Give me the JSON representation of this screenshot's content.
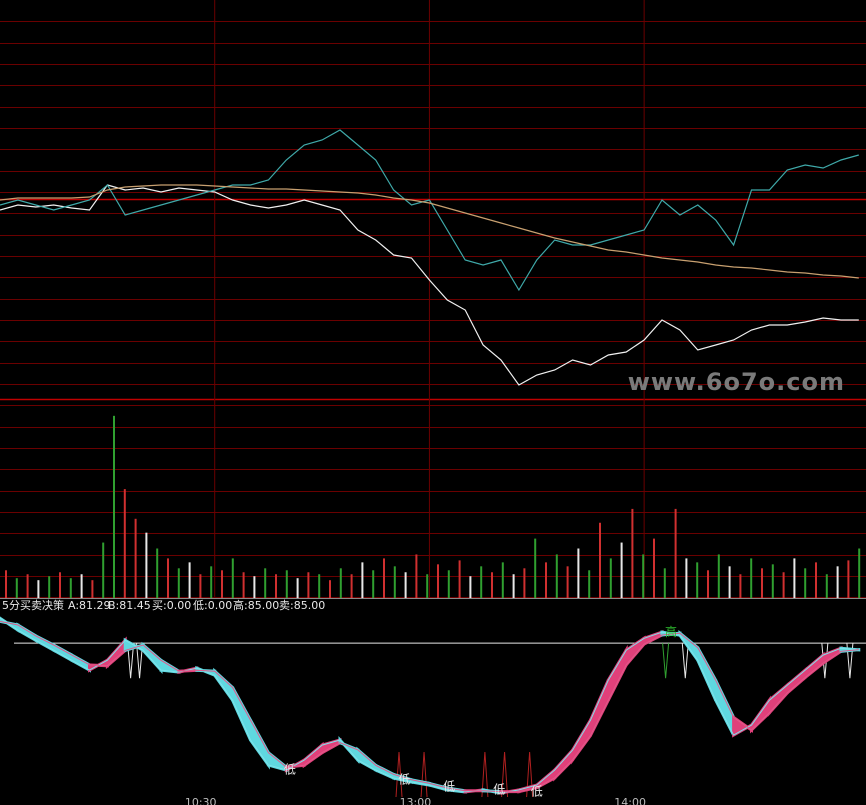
{
  "chart_data": [
    {
      "type": "line",
      "x": [
        0,
        1,
        2,
        3,
        4,
        5,
        6,
        7,
        8,
        9,
        10,
        11,
        12,
        13,
        14,
        15,
        16,
        17,
        18,
        19,
        20,
        21,
        22,
        23,
        24,
        25,
        26,
        27,
        28,
        29,
        30,
        31,
        32,
        33,
        34,
        35,
        36,
        37,
        38,
        39,
        40,
        41,
        42,
        43,
        44,
        45,
        46,
        47,
        48
      ],
      "xlim": [
        0,
        48.4
      ],
      "ylim": [
        0,
        100
      ],
      "grid": true,
      "watermark": "www.6o7o.com",
      "series": [
        {
          "color": "#f0f0f0",
          "values": [
            47.5,
            48.75,
            48.25,
            48.75,
            48,
            47.5,
            53.75,
            52.5,
            53,
            52,
            53,
            52.5,
            52,
            50,
            48.75,
            48,
            48.75,
            50,
            48.75,
            47.5,
            42.5,
            40,
            36.25,
            35.5,
            30,
            25,
            22.5,
            13.75,
            10,
            3.75,
            6.25,
            7.5,
            10,
            8.75,
            11.25,
            12,
            15,
            20,
            17.5,
            12.5,
            13.75,
            15,
            17.5,
            18.75,
            18.75,
            19.5,
            20.5,
            20,
            20
          ]
        },
        {
          "color": "#3fa9a9",
          "values": [
            48.75,
            50,
            48.75,
            47.5,
            48.75,
            50,
            53.75,
            46.25,
            47.5,
            48.75,
            50,
            51.25,
            52.5,
            53.75,
            53.75,
            55,
            60,
            63.75,
            65,
            67.5,
            63.75,
            60,
            52.5,
            48.75,
            50,
            42.5,
            35,
            33.75,
            35,
            27.5,
            35,
            40,
            38.75,
            38.75,
            40,
            41.25,
            42.5,
            50,
            46.25,
            48.75,
            45,
            38.75,
            52.5,
            52.5,
            57.5,
            58.75,
            58,
            60,
            61.25
          ]
        },
        {
          "color": "#c8a070",
          "values": [
            50,
            50.5,
            50.5,
            50.5,
            50.5,
            50.75,
            52.5,
            53.25,
            53.5,
            53.75,
            53.75,
            53.75,
            53.5,
            53.25,
            53,
            52.75,
            52.75,
            52.5,
            52.25,
            52,
            51.75,
            51.25,
            50.5,
            50,
            49.25,
            48,
            46.75,
            45.5,
            44.25,
            43,
            41.75,
            40.5,
            39.5,
            38.5,
            37.5,
            37,
            36.25,
            35.5,
            35,
            34.5,
            33.75,
            33.25,
            33,
            32.5,
            32,
            31.75,
            31.25,
            31,
            30.5
          ]
        }
      ]
    },
    {
      "type": "bar",
      "ylim": [
        0,
        100
      ],
      "values": [
        14,
        10,
        12,
        9,
        11,
        13,
        10,
        12,
        9,
        28,
        92,
        55,
        40,
        33,
        25,
        20,
        15,
        18,
        12,
        16,
        14,
        20,
        13,
        11,
        15,
        12,
        14,
        10,
        13,
        12,
        9,
        15,
        12,
        18,
        14,
        20,
        16,
        13,
        22,
        12,
        17,
        14,
        19,
        11,
        16,
        13,
        18,
        12,
        15,
        30,
        18,
        22,
        16,
        25,
        14,
        38,
        20,
        28,
        45,
        22,
        30,
        15,
        45,
        20,
        18,
        14,
        22,
        16,
        12,
        20,
        15,
        17,
        13,
        20,
        15,
        18,
        12,
        16,
        19,
        25
      ],
      "colors": [
        "#d03030",
        "#30a030",
        "#d03030",
        "#e8e8e8",
        "#30a030",
        "#d03030",
        "#30a030",
        "#e8e8e8",
        "#d03030",
        "#30a030",
        "#30a030",
        "#d03030",
        "#d03030",
        "#e8e8e8",
        "#30a030",
        "#d03030",
        "#30a030",
        "#e8e8e8",
        "#d03030",
        "#30a030",
        "#d03030",
        "#30a030",
        "#d03030",
        "#e8e8e8",
        "#30a030",
        "#d03030",
        "#30a030",
        "#e8e8e8",
        "#d03030",
        "#30a030",
        "#d03030",
        "#30a030",
        "#d03030",
        "#e8e8e8",
        "#30a030",
        "#d03030",
        "#30a030",
        "#e8e8e8",
        "#d03030",
        "#30a030",
        "#d03030",
        "#30a030",
        "#d03030",
        "#e8e8e8",
        "#30a030",
        "#d03030",
        "#30a030",
        "#e8e8e8",
        "#d03030",
        "#30a030",
        "#d03030",
        "#30a030",
        "#d03030",
        "#e8e8e8",
        "#30a030",
        "#d03030",
        "#30a030",
        "#e8e8e8",
        "#d03030",
        "#30a030",
        "#d03030",
        "#30a030",
        "#d03030",
        "#e8e8e8",
        "#30a030",
        "#d03030",
        "#30a030",
        "#e8e8e8",
        "#d03030",
        "#30a030",
        "#d03030",
        "#30a030",
        "#d03030",
        "#e8e8e8",
        "#30a030",
        "#d03030",
        "#30a030",
        "#e8e8e8",
        "#d03030",
        "#30a030"
      ]
    },
    {
      "type": "ribbon",
      "title": "5分买卖决策",
      "readouts": [
        "A:81.29",
        "B:81.45",
        "买:0.00",
        "低:0.00",
        "高:85.00",
        "卖:85.00"
      ],
      "x": [
        0,
        1,
        2,
        3,
        4,
        5,
        6,
        7,
        8,
        9,
        10,
        11,
        12,
        13,
        14,
        15,
        16,
        17,
        18,
        19,
        20,
        21,
        22,
        23,
        24,
        25,
        26,
        27,
        28,
        29,
        30,
        31,
        32,
        33,
        34,
        35,
        36,
        37,
        38,
        39,
        40,
        41,
        42,
        43,
        44,
        45,
        46,
        47,
        48
      ],
      "xlim": [
        0,
        48.4
      ],
      "ylim": [
        0,
        100
      ],
      "ref_line": 85,
      "xticks": [
        {
          "value": 12,
          "label": "10:30"
        },
        {
          "value": 24,
          "label": "13:00"
        },
        {
          "value": 36,
          "label": "14:00"
        }
      ],
      "rise_color": "#e0407a",
      "fall_color": "#5fd8e0",
      "series": [
        {
          "color": "#7fe3ea",
          "values": [
            98.8,
            92.2,
            86.6,
            81.1,
            75.6,
            70.1,
            75.6,
            86.6,
            81.1,
            70.1,
            69.0,
            71.2,
            67.3,
            53.5,
            31.5,
            17.7,
            14.9,
            20.4,
            28.7,
            31.5,
            20.4,
            14.9,
            10.5,
            8.3,
            6.6,
            3.9,
            2.8,
            3.9,
            2.2,
            3.9,
            6.6,
            14.9,
            25.9,
            42.5,
            64.6,
            81.1,
            87.7,
            91.1,
            89.4,
            75.6,
            53.5,
            34.2,
            39.7,
            53.5,
            61.8,
            70.1,
            78.4,
            82.2,
            81.29
          ]
        },
        {
          "color": "#e05a8a",
          "values": [
            97.0,
            95.0,
            89.0,
            84.0,
            78.5,
            73.0,
            72.5,
            81.0,
            84.0,
            75.5,
            69.5,
            70.0,
            69.5,
            60.5,
            42.5,
            24.5,
            16.5,
            17.5,
            24.5,
            30.0,
            26.0,
            17.5,
            12.5,
            9.5,
            7.5,
            5.0,
            3.4,
            3.4,
            3.0,
            3.0,
            5.2,
            10.5,
            20.5,
            34.0,
            53.5,
            73.0,
            84.5,
            89.5,
            90.5,
            82.5,
            64.5,
            44.0,
            37.0,
            46.5,
            57.5,
            66.0,
            74.0,
            80.5,
            81.45
          ]
        }
      ],
      "buy_signals": [
        22.3,
        23.7,
        27.1,
        28.2,
        29.6
      ],
      "sell_signals": [
        7.3,
        7.8,
        37.2,
        38.3,
        46.1,
        47.5
      ],
      "annotations": [
        {
          "text": "低",
          "x": 16.2,
          "y": 14.9
        },
        {
          "text": "低",
          "x": 22.6,
          "y": 9.4
        },
        {
          "text": "低",
          "x": 25.1,
          "y": 5.5
        },
        {
          "text": "低",
          "x": 27.9,
          "y": 3.9
        },
        {
          "text": "低",
          "x": 30,
          "y": 2.8
        },
        {
          "text": "高",
          "x": 37.5,
          "y": 91
        }
      ]
    }
  ]
}
